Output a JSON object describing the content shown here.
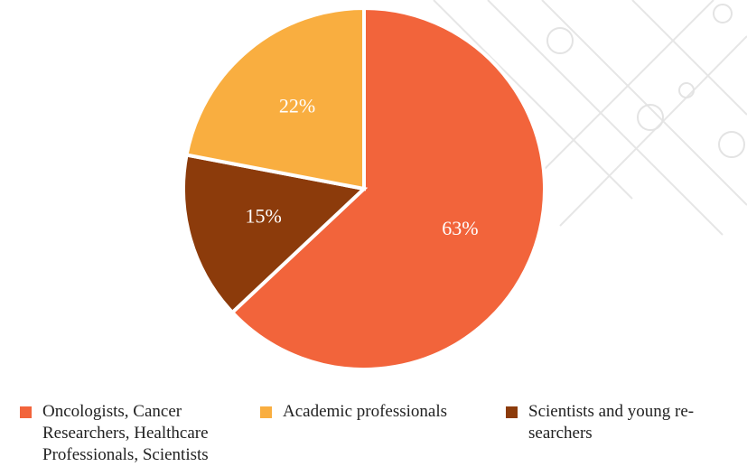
{
  "chart_data": {
    "type": "pie",
    "categories": [
      "Oncologists, Cancer Researchers, Healthcare Professionals, Scientists",
      "Scientists and young re-searchers",
      "Academic professionals"
    ],
    "values": [
      63,
      15,
      22
    ],
    "value_labels": [
      "63%",
      "15%",
      "22%"
    ],
    "colors": [
      "#f2643b",
      "#8c3b0b",
      "#f9ae40"
    ],
    "legend_order": [
      0,
      2,
      1
    ]
  }
}
